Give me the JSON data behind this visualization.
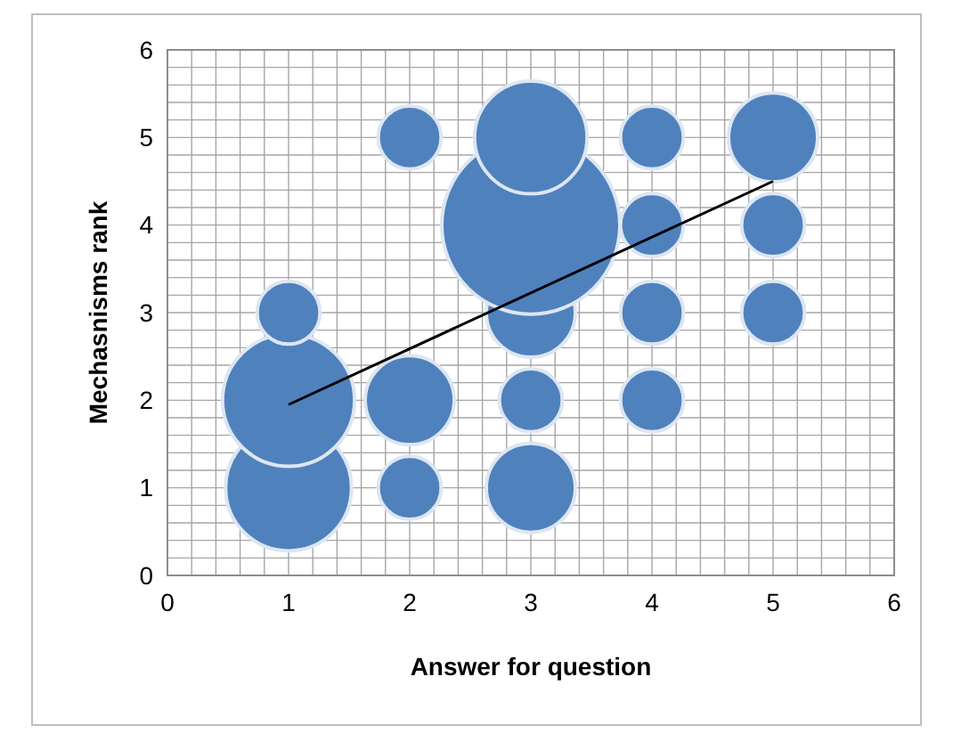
{
  "chart_data": {
    "type": "bubble",
    "xlabel": "Answer for question",
    "ylabel": "Mechasnisms rank",
    "xlim": [
      0,
      6
    ],
    "ylim": [
      0,
      6
    ],
    "xticks": [
      0,
      1,
      2,
      3,
      4,
      5,
      6
    ],
    "yticks": [
      0,
      1,
      2,
      3,
      4,
      5,
      6
    ],
    "grid": true,
    "series": [
      {
        "color": "#4f81bd",
        "x": [
          1,
          1,
          1,
          2,
          2,
          2,
          3,
          3,
          3,
          3,
          3,
          4,
          4,
          4,
          4,
          5,
          5,
          5
        ],
        "values": [
          1,
          2,
          3,
          1,
          2,
          5,
          1,
          2,
          3,
          4,
          5,
          2,
          3,
          4,
          5,
          3,
          4,
          5
        ],
        "sizes": [
          0.5,
          0.55,
          0.125,
          0.125,
          0.25,
          0.125,
          0.25,
          0.125,
          0.25,
          1,
          0.4,
          0.125,
          0.125,
          0.125,
          0.125,
          0.125,
          0.125,
          0.25
        ]
      },
      {
        "type": "line",
        "color": "#000000",
        "x": [
          1,
          5
        ],
        "values": [
          1.95,
          4.5
        ]
      }
    ]
  }
}
